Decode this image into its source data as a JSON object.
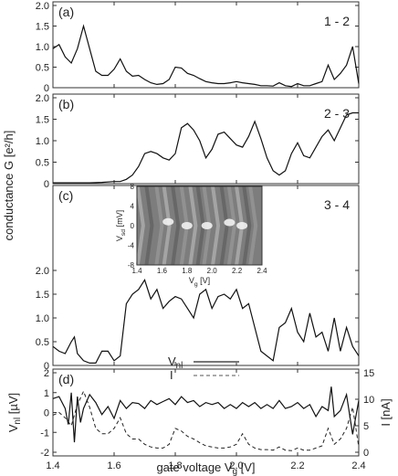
{
  "chart_data": [
    {
      "panel": "a",
      "type": "line",
      "panel_label": "(a)",
      "annotation": "1 - 2",
      "ylim": [
        0,
        2.0
      ],
      "yticks": [
        "0",
        "0.5",
        "1.0",
        "1.5",
        "2.0"
      ],
      "series": [
        {
          "x": [
            1.4,
            1.42,
            1.44,
            1.46,
            1.48,
            1.5,
            1.52,
            1.54,
            1.56,
            1.58,
            1.6,
            1.62,
            1.64,
            1.66,
            1.68,
            1.7,
            1.72,
            1.74,
            1.76,
            1.78,
            1.8,
            1.82,
            1.84,
            1.86,
            1.88,
            1.9,
            1.92,
            1.94,
            1.96,
            1.98,
            2.0,
            2.02,
            2.04,
            2.06,
            2.08,
            2.1,
            2.12,
            2.14,
            2.16,
            2.18,
            2.2,
            2.22,
            2.24,
            2.26,
            2.28,
            2.3,
            2.32,
            2.34,
            2.36,
            2.38,
            2.4
          ],
          "y": [
            0.95,
            1.05,
            0.75,
            0.6,
            0.95,
            1.5,
            0.95,
            0.4,
            0.3,
            0.3,
            0.45,
            0.7,
            0.4,
            0.28,
            0.3,
            0.2,
            0.12,
            0.08,
            0.1,
            0.2,
            0.5,
            0.48,
            0.35,
            0.3,
            0.22,
            0.15,
            0.12,
            0.1,
            0.1,
            0.12,
            0.15,
            0.12,
            0.1,
            0.08,
            0.05,
            0.05,
            0.04,
            0.12,
            0.05,
            0.03,
            0.1,
            0.05,
            0.05,
            0.1,
            0.15,
            0.55,
            0.2,
            0.35,
            0.55,
            1.0,
            0.1
          ]
        }
      ]
    },
    {
      "panel": "b",
      "type": "line",
      "panel_label": "(b)",
      "annotation": "2 - 3",
      "ylim": [
        0,
        2.0
      ],
      "yticks": [
        "0",
        "0.5",
        "1.0",
        "1.5",
        "2.0"
      ],
      "series": [
        {
          "x": [
            1.4,
            1.44,
            1.48,
            1.52,
            1.56,
            1.6,
            1.62,
            1.64,
            1.66,
            1.68,
            1.7,
            1.72,
            1.74,
            1.76,
            1.78,
            1.8,
            1.82,
            1.84,
            1.86,
            1.88,
            1.9,
            1.92,
            1.94,
            1.96,
            1.98,
            2.0,
            2.02,
            2.04,
            2.06,
            2.08,
            2.1,
            2.12,
            2.14,
            2.16,
            2.18,
            2.2,
            2.22,
            2.24,
            2.26,
            2.28,
            2.3,
            2.32,
            2.34,
            2.36,
            2.38,
            2.4
          ],
          "y": [
            0.02,
            0.02,
            0.02,
            0.02,
            0.03,
            0.05,
            0.05,
            0.1,
            0.2,
            0.4,
            0.7,
            0.75,
            0.7,
            0.6,
            0.55,
            0.7,
            1.3,
            1.4,
            1.25,
            1.0,
            0.6,
            0.8,
            1.15,
            1.2,
            1.05,
            0.9,
            0.85,
            1.1,
            1.45,
            1.05,
            0.6,
            0.3,
            0.2,
            0.3,
            0.7,
            0.95,
            0.65,
            0.6,
            0.85,
            1.1,
            1.25,
            1.0,
            1.3,
            1.6,
            1.65,
            1.65
          ]
        }
      ]
    },
    {
      "panel": "c",
      "type": "line",
      "panel_label": "(c)",
      "annotation": "3 - 4",
      "ylim": [
        0,
        2.0
      ],
      "yticks": [
        "0",
        "0.5",
        "1.0",
        "1.5",
        "2.0"
      ],
      "series": [
        {
          "x": [
            1.4,
            1.42,
            1.44,
            1.46,
            1.47,
            1.48,
            1.5,
            1.52,
            1.54,
            1.56,
            1.58,
            1.6,
            1.62,
            1.64,
            1.66,
            1.68,
            1.7,
            1.72,
            1.74,
            1.76,
            1.78,
            1.8,
            1.82,
            1.84,
            1.86,
            1.88,
            1.9,
            1.92,
            1.94,
            1.96,
            1.98,
            2.0,
            2.02,
            2.04,
            2.06,
            2.08,
            2.1,
            2.12,
            2.14,
            2.16,
            2.18,
            2.2,
            2.22,
            2.24,
            2.26,
            2.28,
            2.3,
            2.32,
            2.34,
            2.36,
            2.38,
            2.4
          ],
          "y": [
            0.4,
            0.3,
            0.25,
            0.5,
            0.6,
            0.25,
            0.1,
            0.05,
            0.05,
            0.3,
            0.3,
            0.1,
            0.2,
            1.3,
            1.5,
            1.6,
            1.8,
            1.4,
            1.6,
            1.2,
            1.35,
            1.45,
            1.4,
            1.2,
            1.0,
            1.5,
            1.6,
            1.2,
            1.45,
            1.5,
            1.4,
            1.6,
            1.2,
            1.3,
            0.8,
            0.3,
            0.2,
            0.1,
            0.8,
            0.9,
            1.2,
            0.7,
            0.5,
            1.1,
            0.6,
            0.7,
            0.3,
            1.0,
            0.3,
            0.8,
            0.4,
            0.2
          ]
        }
      ],
      "inset": {
        "type": "heatmap",
        "xlabel": "V_g [V]",
        "ylabel": "V_sd [mV]",
        "xticks": [
          "1.4",
          "1.6",
          "1.8",
          "2.0",
          "2.2",
          "2.4"
        ],
        "yticks": [
          "-8",
          "-4",
          "0",
          "4",
          "8"
        ],
        "xlim": [
          1.4,
          2.4
        ],
        "ylim": [
          -8,
          8
        ]
      }
    },
    {
      "panel": "d",
      "type": "line",
      "panel_label": "(d)",
      "ylabel_left": "V_nl [µV]",
      "ylabel_right": "I [nA]",
      "ylim_left": [
        -2,
        2
      ],
      "ylim_right": [
        0,
        15
      ],
      "yticks_left": [
        "-2",
        "-1",
        "0",
        "1",
        "2"
      ],
      "yticks_right": [
        "0",
        "5",
        "10",
        "15"
      ],
      "legend": [
        {
          "name": "V_nl",
          "style": "solid"
        },
        {
          "name": "I",
          "style": "dashed"
        }
      ],
      "series": [
        {
          "name": "V_nl",
          "axis": "left",
          "x": [
            1.4,
            1.42,
            1.44,
            1.45,
            1.46,
            1.47,
            1.48,
            1.49,
            1.5,
            1.52,
            1.54,
            1.56,
            1.58,
            1.6,
            1.62,
            1.64,
            1.66,
            1.68,
            1.7,
            1.72,
            1.74,
            1.76,
            1.78,
            1.8,
            1.82,
            1.84,
            1.86,
            1.88,
            1.9,
            1.92,
            1.94,
            1.96,
            1.98,
            2.0,
            2.02,
            2.04,
            2.06,
            2.08,
            2.1,
            2.12,
            2.14,
            2.16,
            2.18,
            2.2,
            2.22,
            2.24,
            2.26,
            2.28,
            2.3,
            2.31,
            2.32,
            2.34,
            2.36,
            2.38,
            2.4
          ],
          "y": [
            0.7,
            0.8,
            0.2,
            -0.6,
            1.0,
            -1.5,
            0.8,
            -0.5,
            0.2,
            0.9,
            0.5,
            -0.1,
            0.3,
            -0.3,
            0.6,
            0.2,
            0.5,
            0.45,
            0.2,
            0.6,
            0.4,
            0.55,
            0.7,
            0.4,
            0.8,
            0.5,
            0.6,
            0.3,
            0.5,
            0.4,
            0.5,
            0.2,
            0.4,
            0.2,
            0.5,
            0.3,
            0.5,
            0.2,
            0.4,
            0.2,
            0.6,
            0.2,
            0.3,
            0.5,
            0.2,
            0.4,
            -0.2,
            0.3,
            0.1,
            1.3,
            -0.2,
            0.1,
            0.9,
            -1.1,
            0.6
          ]
        },
        {
          "name": "I",
          "axis": "right",
          "x": [
            1.4,
            1.42,
            1.44,
            1.46,
            1.48,
            1.5,
            1.52,
            1.54,
            1.56,
            1.58,
            1.6,
            1.62,
            1.64,
            1.66,
            1.68,
            1.7,
            1.72,
            1.74,
            1.76,
            1.78,
            1.8,
            1.82,
            1.84,
            1.86,
            1.88,
            1.9,
            1.92,
            1.94,
            1.96,
            1.98,
            2.0,
            2.02,
            2.04,
            2.06,
            2.08,
            2.1,
            2.12,
            2.14,
            2.16,
            2.18,
            2.2,
            2.22,
            2.24,
            2.26,
            2.28,
            2.3,
            2.32,
            2.34,
            2.36,
            2.38,
            2.4
          ],
          "y": [
            7.0,
            7.5,
            6.5,
            5.0,
            9.0,
            11.5,
            8.5,
            4.5,
            3.5,
            3.5,
            4.5,
            6.5,
            3.5,
            2.5,
            2.5,
            1.5,
            1.0,
            0.8,
            0.8,
            1.5,
            4.5,
            4.0,
            3.0,
            2.5,
            1.8,
            1.2,
            1.0,
            0.8,
            0.8,
            1.0,
            1.5,
            3.5,
            1.5,
            0.8,
            0.5,
            0.5,
            0.4,
            1.0,
            0.4,
            0.3,
            0.8,
            0.4,
            0.4,
            0.8,
            1.2,
            4.5,
            1.5,
            2.5,
            4.5,
            8.5,
            1.0
          ]
        }
      ]
    }
  ],
  "shared": {
    "xlim": [
      1.4,
      2.4
    ],
    "xticks": [
      "1.4",
      "1.6",
      "1.8",
      "2.0",
      "2.2",
      "2.4"
    ],
    "xlabel": "gate voltage V_g [V]",
    "ylabel": "conductance G [e²/h]"
  }
}
